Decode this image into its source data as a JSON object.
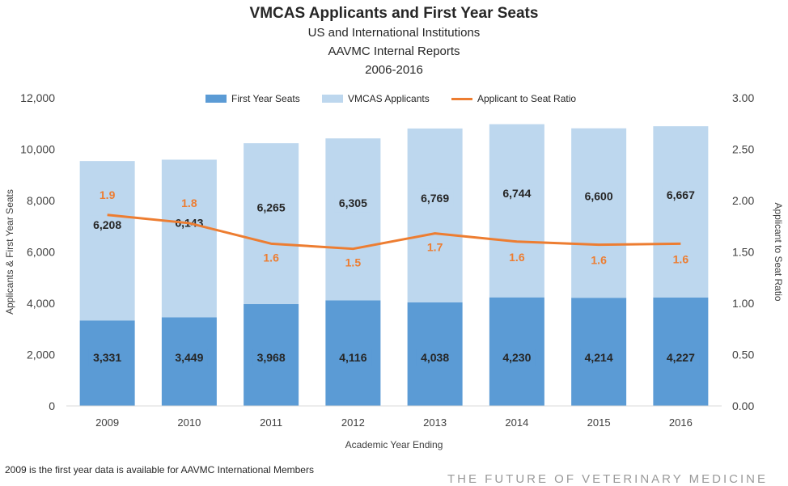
{
  "chart_data": {
    "type": "bar",
    "title": "VMCAS Applicants and First Year Seats",
    "subtitles": [
      "US and International Institutions",
      "AAVMC Internal Reports",
      "2006-2016"
    ],
    "xlabel": "Academic Year Ending",
    "ylabel": "Applicants & First Year Seats",
    "y2label": "Applicant to Seat Ratio",
    "categories": [
      "2009",
      "2010",
      "2011",
      "2012",
      "2013",
      "2014",
      "2015",
      "2016"
    ],
    "ylim": [
      0,
      12000
    ],
    "y2lim": [
      0,
      3
    ],
    "yticks": [
      "0",
      "2,000",
      "4,000",
      "6,000",
      "8,000",
      "10,000",
      "12,000"
    ],
    "y2ticks": [
      "0.00",
      "0.50",
      "1.00",
      "1.50",
      "2.00",
      "2.50",
      "3.00"
    ],
    "stacked": true,
    "series": [
      {
        "name": "First Year Seats",
        "type": "bar",
        "color": "#5b9bd5",
        "values": [
          3331,
          3449,
          3968,
          4116,
          4038,
          4230,
          4214,
          4227
        ],
        "labels": [
          "3,331",
          "3,449",
          "3,968",
          "4,116",
          "4,038",
          "4,230",
          "4,214",
          "4,227"
        ]
      },
      {
        "name": "VMCAS Applicants",
        "type": "bar",
        "color": "#bdd7ee",
        "values": [
          6208,
          6143,
          6265,
          6305,
          6769,
          6744,
          6600,
          6667
        ],
        "labels": [
          "6,208",
          "6,143",
          "6,265",
          "6,305",
          "6,769",
          "6,744",
          "6,600",
          "6,667"
        ]
      },
      {
        "name": "Applicant to Seat Ratio",
        "type": "line",
        "axis": "right",
        "color": "#ed7d31",
        "values": [
          1.86,
          1.78,
          1.58,
          1.53,
          1.68,
          1.6,
          1.57,
          1.58
        ],
        "labels": [
          "1.9",
          "1.8",
          "1.6",
          "1.5",
          "1.7",
          "1.6",
          "1.6",
          "1.6"
        ]
      }
    ],
    "grid": false,
    "legend": "top-center"
  },
  "footnote": "2009 is the first year data is available for AAVMC International Members",
  "watermark": "THE FUTURE OF VETERINARY MEDICINE"
}
